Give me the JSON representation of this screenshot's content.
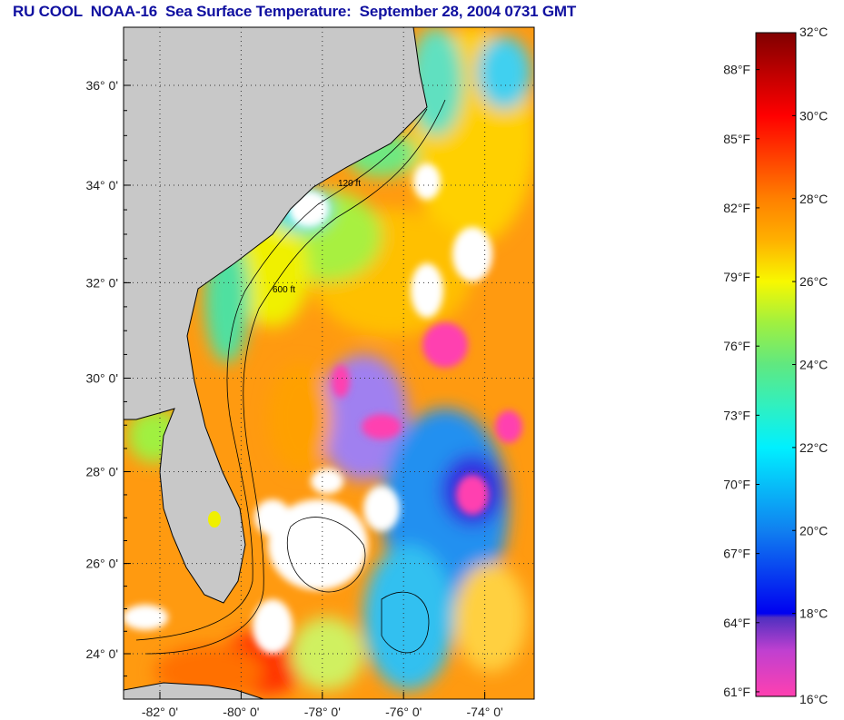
{
  "title": "RU COOL  NOAA-16  Sea Surface Temperature:  September 28, 2004 0731 GMT",
  "map": {
    "lat_ticks": [
      {
        "value": 36,
        "label": "36° 0'"
      },
      {
        "value": 34,
        "label": "34° 0'"
      },
      {
        "value": 32,
        "label": "32° 0'"
      },
      {
        "value": 30,
        "label": "30° 0'"
      },
      {
        "value": 28,
        "label": "28° 0'"
      },
      {
        "value": 26,
        "label": "26° 0'"
      },
      {
        "value": 24,
        "label": "24° 0'"
      }
    ],
    "lon_ticks": [
      {
        "value": -82,
        "label": "-82° 0'"
      },
      {
        "value": -80,
        "label": "-80° 0'"
      },
      {
        "value": -78,
        "label": "-78° 0'"
      },
      {
        "value": -76,
        "label": "-76° 0'"
      },
      {
        "value": -74,
        "label": "-74° 0'"
      }
    ],
    "contour_labels": [
      "120 ft",
      "600 ft"
    ],
    "colors": {
      "land": "#c8c8c8",
      "cloud": "#ffffff"
    }
  },
  "colorbar": {
    "range_c": [
      16,
      32
    ],
    "celsius_ticks": [
      {
        "value": 32,
        "label": "32°C"
      },
      {
        "value": 30,
        "label": "30°C"
      },
      {
        "value": 28,
        "label": "28°C"
      },
      {
        "value": 26,
        "label": "26°C"
      },
      {
        "value": 24,
        "label": "24°C"
      },
      {
        "value": 22,
        "label": "22°C"
      },
      {
        "value": 20,
        "label": "20°C"
      },
      {
        "value": 18,
        "label": "18°C"
      },
      {
        "value": 16,
        "label": "16°C"
      }
    ],
    "fahrenheit_ticks": [
      {
        "value": 88,
        "label": "88°F"
      },
      {
        "value": 85,
        "label": "85°F"
      },
      {
        "value": 82,
        "label": "82°F"
      },
      {
        "value": 79,
        "label": "79°F"
      },
      {
        "value": 76,
        "label": "76°F"
      },
      {
        "value": 73,
        "label": "73°F"
      },
      {
        "value": 70,
        "label": "70°F"
      },
      {
        "value": 67,
        "label": "67°F"
      },
      {
        "value": 64,
        "label": "64°F"
      },
      {
        "value": 61,
        "label": "61°F"
      }
    ],
    "stops": [
      {
        "c": 16,
        "color": "#ff40b0"
      },
      {
        "c": 17.1,
        "color": "#c040d0"
      },
      {
        "c": 17.9,
        "color": "#5030c0"
      },
      {
        "c": 18.0,
        "color": "#0000f0"
      },
      {
        "c": 20,
        "color": "#1080f0"
      },
      {
        "c": 22,
        "color": "#00f0ff"
      },
      {
        "c": 23,
        "color": "#30f0c0"
      },
      {
        "c": 24,
        "color": "#60e880"
      },
      {
        "c": 25,
        "color": "#a0f040"
      },
      {
        "c": 26,
        "color": "#f8f800"
      },
      {
        "c": 27,
        "color": "#ffb000"
      },
      {
        "c": 28,
        "color": "#ff8000"
      },
      {
        "c": 29,
        "color": "#ff4000"
      },
      {
        "c": 30,
        "color": "#ff0000"
      },
      {
        "c": 31,
        "color": "#c00000"
      },
      {
        "c": 32,
        "color": "#800000"
      }
    ]
  }
}
